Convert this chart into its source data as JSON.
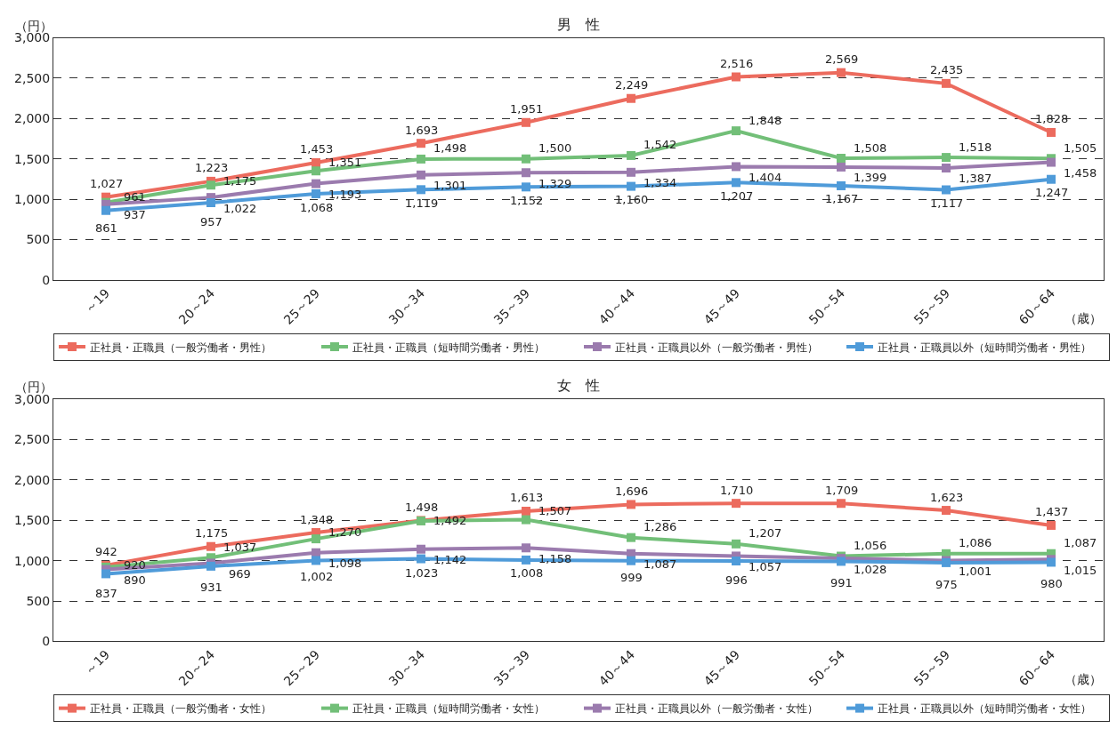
{
  "chart_data": [
    {
      "type": "line",
      "title": "男　性",
      "ylabel": "（円）",
      "xlabel": "（歳）",
      "categories": [
        "～19",
        "20～24",
        "25～29",
        "30～34",
        "35～39",
        "40～44",
        "45～49",
        "50～54",
        "55～59",
        "60～64"
      ],
      "ylim": [
        0,
        3000
      ],
      "yticks": [
        0,
        500,
        {
          "value": 1000,
          "label": "1,000"
        },
        {
          "value": 1500,
          "label": "1,500"
        },
        {
          "value": 2000,
          "label": "2,000"
        },
        {
          "value": 2500,
          "label": "2,500"
        },
        {
          "value": 3000,
          "label": "3,000"
        }
      ],
      "grid": "y",
      "legend": "bottom",
      "marker": "square",
      "series": [
        {
          "name": "正社員・正職員（一般労働者・男性）",
          "color": "#ec6b5e",
          "values": [
            1027,
            1223,
            1453,
            1693,
            1951,
            2249,
            2516,
            2569,
            2435,
            1828
          ],
          "value_labels": [
            "1,027",
            "1,223",
            "1,453",
            "1,693",
            "1,951",
            "2,249",
            "2,516",
            "2,569",
            "2,435",
            "1,828"
          ]
        },
        {
          "name": "正社員・正職員（短時間労働者・男性）",
          "color": "#72bf78",
          "values": [
            961,
            1175,
            1351,
            1498,
            1500,
            1542,
            1848,
            1508,
            1518,
            1505
          ],
          "value_labels": [
            "961",
            "1,175",
            "1,351",
            "1,498",
            "1,500",
            "1,542",
            "1,848",
            "1,508",
            "1,518",
            "1,505"
          ]
        },
        {
          "name": "正社員・正職員以外（一般労働者・男性）",
          "color": "#9b7bae",
          "values": [
            937,
            1022,
            1193,
            1301,
            1329,
            1334,
            1404,
            1399,
            1387,
            1458
          ],
          "value_labels": [
            "937",
            "1,022",
            "1,193",
            "1,301",
            "1,329",
            "1,334",
            "1,404",
            "1,399",
            "1,387",
            "1,458"
          ]
        },
        {
          "name": "正社員・正職員以外（短時間労働者・男性）",
          "color": "#4f9bd9",
          "values": [
            861,
            957,
            1068,
            1119,
            1152,
            1160,
            1207,
            1167,
            1117,
            1247
          ],
          "value_labels": [
            "861",
            "957",
            "1,068",
            "1,119",
            "1,152",
            "1,160",
            "1,207",
            "1,167",
            "1,117",
            "1,247"
          ]
        }
      ]
    },
    {
      "type": "line",
      "title": "女　性",
      "ylabel": "（円）",
      "xlabel": "（歳）",
      "categories": [
        "～19",
        "20～24",
        "25～29",
        "30～34",
        "35～39",
        "40～44",
        "45～49",
        "50～54",
        "55～59",
        "60～64"
      ],
      "ylim": [
        0,
        3000
      ],
      "yticks": [
        0,
        500,
        {
          "value": 1000,
          "label": "1,000"
        },
        {
          "value": 1500,
          "label": "1,500"
        },
        {
          "value": 2000,
          "label": "2,000"
        },
        {
          "value": 2500,
          "label": "2,500"
        },
        {
          "value": 3000,
          "label": "3,000"
        }
      ],
      "grid": "y",
      "legend": "bottom",
      "marker": "square",
      "series": [
        {
          "name": "正社員・正職員（一般労働者・女性）",
          "color": "#ec6b5e",
          "values": [
            942,
            1175,
            1348,
            1498,
            1613,
            1696,
            1710,
            1709,
            1623,
            1437
          ],
          "value_labels": [
            "942",
            "1,175",
            "1,348",
            "1,498",
            "1,613",
            "1,696",
            "1,710",
            "1,709",
            "1,623",
            "1,437"
          ]
        },
        {
          "name": "正社員・正職員（短時間労働者・女性）",
          "color": "#72bf78",
          "values": [
            920,
            1037,
            1270,
            1492,
            1507,
            1286,
            1207,
            1056,
            1086,
            1087
          ],
          "value_labels": [
            "920",
            "1,037",
            "1,270",
            "1,492",
            "1,507",
            "1,286",
            "1,207",
            "1,056",
            "1,086",
            "1,087"
          ]
        },
        {
          "name": "正社員・正職員以外（一般労働者・女性）",
          "color": "#9b7bae",
          "values": [
            890,
            969,
            1098,
            1142,
            1158,
            1087,
            1057,
            1028,
            1001,
            1015
          ],
          "value_labels": [
            "890",
            "969",
            "1,098",
            "1,142",
            "1,158",
            "1,087",
            "1,057",
            "1,028",
            "1,001",
            "1,015"
          ]
        },
        {
          "name": "正社員・正職員以外（短時間労働者・女性）",
          "color": "#4f9bd9",
          "values": [
            837,
            931,
            1002,
            1023,
            1008,
            999,
            996,
            991,
            975,
            980
          ],
          "value_labels": [
            "837",
            "931",
            "1,002",
            "1,023",
            "1,008",
            "999",
            "996",
            "991",
            "975",
            "980"
          ]
        }
      ]
    }
  ]
}
